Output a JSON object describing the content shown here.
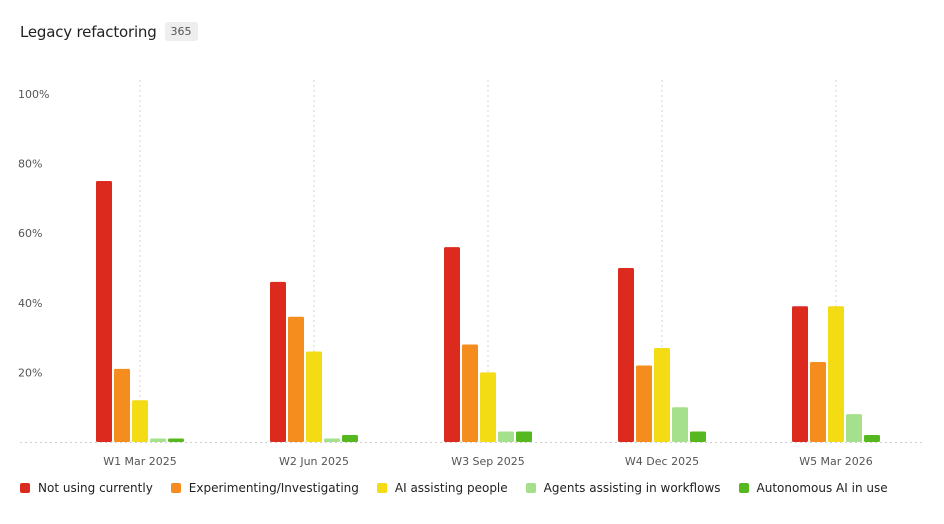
{
  "header": {
    "title": "Legacy refactoring",
    "count": "365"
  },
  "chart_data": {
    "type": "bar",
    "categories": [
      "W1 Mar 2025",
      "W2 Jun 2025",
      "W3 Sep 2025",
      "W4 Dec 2025",
      "W5 Mar 2026"
    ],
    "series": [
      {
        "name": "Not using currently",
        "color": "#dc2a1f",
        "values": [
          75,
          46,
          56,
          50,
          39
        ]
      },
      {
        "name": "Experimenting/Investigating",
        "color": "#f58c1e",
        "values": [
          21,
          36,
          28,
          22,
          23
        ]
      },
      {
        "name": "AI assisting people",
        "color": "#f4dc14",
        "values": [
          12,
          26,
          20,
          27,
          39
        ]
      },
      {
        "name": "Agents assisting in workflows",
        "color": "#a5e08c",
        "values": [
          1,
          1,
          3,
          10,
          8
        ]
      },
      {
        "name": "Autonomous AI in use",
        "color": "#55b81e",
        "values": [
          1,
          2,
          3,
          3,
          2
        ]
      }
    ],
    "yticks": [
      {
        "value": 20,
        "label": "20%"
      },
      {
        "value": 40,
        "label": "40%"
      },
      {
        "value": 60,
        "label": "60%"
      },
      {
        "value": 80,
        "label": "80%"
      },
      {
        "value": 100,
        "label": "100%"
      }
    ],
    "ylim": [
      0,
      100
    ],
    "grid": "vertical dotted lines at category centers",
    "legend_position": "bottom-left"
  }
}
